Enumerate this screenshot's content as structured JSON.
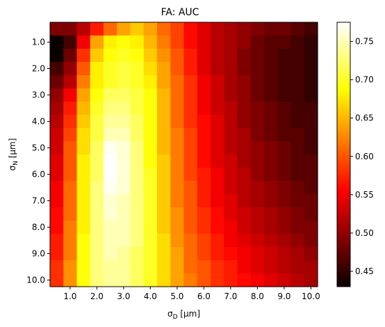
{
  "chart_data": {
    "type": "heatmap",
    "title": "FA: AUC",
    "xlabel": "σ_D [μm]",
    "ylabel": "σ_N [μm]",
    "x_ticks": [
      "1.0",
      "2.0",
      "3.0",
      "4.0",
      "5.0",
      "6.0",
      "7.0",
      "8.0",
      "9.0",
      "10.0"
    ],
    "y_ticks": [
      "1.0",
      "2.0",
      "3.0",
      "4.0",
      "5.0",
      "6.0",
      "7.0",
      "8.0",
      "9.0",
      "10.0"
    ],
    "x_range": [
      0.5,
      10.0
    ],
    "y_range": [
      0.5,
      10.0
    ],
    "n_cols": 20,
    "n_rows": 20,
    "colormap": "hot",
    "colorbar": {
      "min": 0.43,
      "max": 0.775,
      "ticks": [
        "0.45",
        "0.50",
        "0.55",
        "0.60",
        "0.65",
        "0.70",
        "0.75"
      ],
      "tick_values": [
        0.45,
        0.5,
        0.55,
        0.6,
        0.65,
        0.7,
        0.75
      ]
    },
    "values": [
      [
        0.49,
        0.49,
        0.52,
        0.57,
        0.61,
        0.64,
        0.66,
        0.64,
        0.61,
        0.59,
        0.56,
        0.54,
        0.52,
        0.51,
        0.5,
        0.49,
        0.48,
        0.48,
        0.47,
        0.46
      ],
      [
        0.43,
        0.46,
        0.55,
        0.64,
        0.68,
        0.69,
        0.68,
        0.65,
        0.62,
        0.59,
        0.56,
        0.54,
        0.52,
        0.51,
        0.5,
        0.48,
        0.47,
        0.47,
        0.46,
        0.45
      ],
      [
        0.43,
        0.48,
        0.58,
        0.66,
        0.69,
        0.7,
        0.69,
        0.66,
        0.63,
        0.6,
        0.57,
        0.54,
        0.52,
        0.51,
        0.49,
        0.48,
        0.47,
        0.46,
        0.46,
        0.45
      ],
      [
        0.46,
        0.5,
        0.6,
        0.68,
        0.7,
        0.71,
        0.7,
        0.67,
        0.64,
        0.6,
        0.57,
        0.54,
        0.52,
        0.51,
        0.49,
        0.48,
        0.47,
        0.46,
        0.46,
        0.45
      ],
      [
        0.48,
        0.52,
        0.62,
        0.68,
        0.7,
        0.71,
        0.7,
        0.68,
        0.64,
        0.61,
        0.58,
        0.55,
        0.53,
        0.51,
        0.5,
        0.48,
        0.47,
        0.46,
        0.46,
        0.45
      ],
      [
        0.5,
        0.55,
        0.64,
        0.69,
        0.72,
        0.72,
        0.71,
        0.69,
        0.65,
        0.61,
        0.58,
        0.55,
        0.53,
        0.51,
        0.5,
        0.48,
        0.47,
        0.46,
        0.46,
        0.45
      ],
      [
        0.51,
        0.57,
        0.65,
        0.7,
        0.73,
        0.73,
        0.71,
        0.69,
        0.65,
        0.61,
        0.58,
        0.55,
        0.53,
        0.52,
        0.5,
        0.49,
        0.48,
        0.47,
        0.46,
        0.46
      ],
      [
        0.52,
        0.58,
        0.66,
        0.71,
        0.74,
        0.74,
        0.72,
        0.69,
        0.65,
        0.61,
        0.58,
        0.56,
        0.54,
        0.52,
        0.5,
        0.49,
        0.48,
        0.47,
        0.46,
        0.46
      ],
      [
        0.53,
        0.59,
        0.67,
        0.71,
        0.75,
        0.75,
        0.72,
        0.69,
        0.65,
        0.62,
        0.59,
        0.56,
        0.54,
        0.52,
        0.51,
        0.49,
        0.48,
        0.47,
        0.47,
        0.46
      ],
      [
        0.53,
        0.6,
        0.67,
        0.72,
        0.77,
        0.76,
        0.73,
        0.69,
        0.65,
        0.62,
        0.59,
        0.56,
        0.54,
        0.52,
        0.51,
        0.5,
        0.49,
        0.48,
        0.47,
        0.46
      ],
      [
        0.54,
        0.6,
        0.68,
        0.72,
        0.78,
        0.76,
        0.73,
        0.69,
        0.66,
        0.62,
        0.59,
        0.56,
        0.54,
        0.53,
        0.51,
        0.5,
        0.49,
        0.48,
        0.47,
        0.47
      ],
      [
        0.54,
        0.6,
        0.68,
        0.72,
        0.78,
        0.76,
        0.73,
        0.7,
        0.66,
        0.62,
        0.59,
        0.57,
        0.55,
        0.53,
        0.52,
        0.5,
        0.49,
        0.48,
        0.47,
        0.47
      ],
      [
        0.55,
        0.61,
        0.68,
        0.73,
        0.77,
        0.76,
        0.73,
        0.7,
        0.66,
        0.62,
        0.6,
        0.57,
        0.55,
        0.53,
        0.52,
        0.51,
        0.5,
        0.49,
        0.48,
        0.47
      ],
      [
        0.55,
        0.61,
        0.68,
        0.73,
        0.76,
        0.75,
        0.73,
        0.7,
        0.66,
        0.62,
        0.6,
        0.57,
        0.55,
        0.54,
        0.52,
        0.51,
        0.5,
        0.49,
        0.48,
        0.48
      ],
      [
        0.56,
        0.61,
        0.68,
        0.73,
        0.76,
        0.75,
        0.73,
        0.7,
        0.66,
        0.63,
        0.6,
        0.58,
        0.56,
        0.54,
        0.53,
        0.52,
        0.51,
        0.5,
        0.49,
        0.48
      ],
      [
        0.56,
        0.62,
        0.68,
        0.73,
        0.75,
        0.75,
        0.73,
        0.7,
        0.66,
        0.63,
        0.6,
        0.58,
        0.56,
        0.55,
        0.53,
        0.52,
        0.51,
        0.5,
        0.49,
        0.49
      ],
      [
        0.57,
        0.62,
        0.69,
        0.73,
        0.75,
        0.75,
        0.73,
        0.7,
        0.67,
        0.63,
        0.61,
        0.59,
        0.57,
        0.55,
        0.54,
        0.53,
        0.52,
        0.51,
        0.5,
        0.49
      ],
      [
        0.57,
        0.62,
        0.69,
        0.73,
        0.75,
        0.74,
        0.72,
        0.7,
        0.67,
        0.64,
        0.61,
        0.59,
        0.57,
        0.56,
        0.55,
        0.54,
        0.53,
        0.52,
        0.51,
        0.5
      ],
      [
        0.58,
        0.63,
        0.69,
        0.73,
        0.74,
        0.74,
        0.72,
        0.7,
        0.67,
        0.64,
        0.61,
        0.6,
        0.58,
        0.57,
        0.55,
        0.54,
        0.53,
        0.52,
        0.51,
        0.51
      ],
      [
        0.58,
        0.63,
        0.69,
        0.73,
        0.74,
        0.74,
        0.72,
        0.7,
        0.67,
        0.64,
        0.62,
        0.6,
        0.58,
        0.57,
        0.56,
        0.55,
        0.54,
        0.53,
        0.52,
        0.51
      ]
    ]
  }
}
